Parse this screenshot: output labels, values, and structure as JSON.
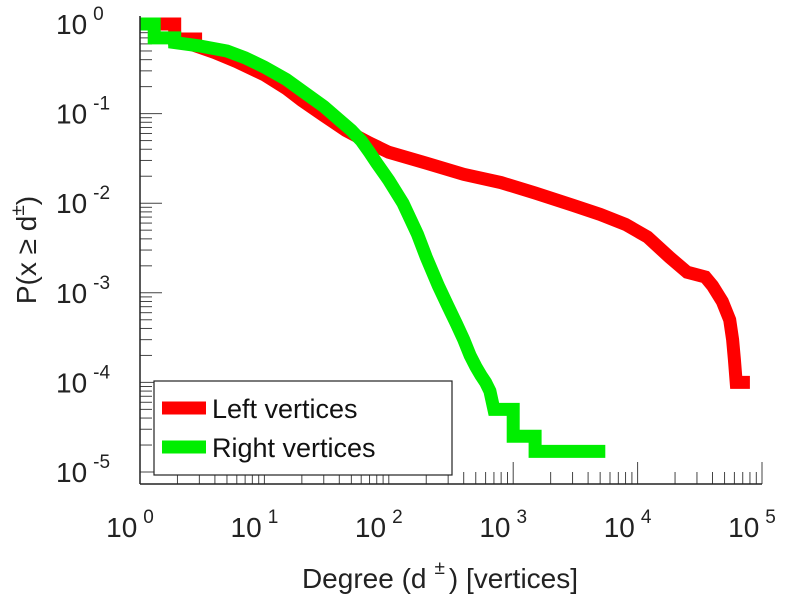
{
  "chart_data": {
    "type": "line",
    "xlabel": "Degree (d ±) [vertices]",
    "xlabel_parts": {
      "pre": "Degree (d",
      "sup": "±",
      "post": ") [vertices]"
    },
    "ylabel": "P(x ≥ d±)",
    "ylabel_parts": {
      "pre": "P(x ≥ d",
      "sup": "±",
      "post": ")"
    },
    "x_scale": "log",
    "y_scale": "log",
    "xlim": [
      1,
      100000
    ],
    "ylim": [
      1e-05,
      1
    ],
    "x_ticks": [
      {
        "base": "10",
        "exp": "0"
      },
      {
        "base": "10",
        "exp": "1"
      },
      {
        "base": "10",
        "exp": "2"
      },
      {
        "base": "10",
        "exp": "3"
      },
      {
        "base": "10",
        "exp": "4"
      },
      {
        "base": "10",
        "exp": "5"
      }
    ],
    "y_ticks": [
      {
        "base": "10",
        "exp": "0"
      },
      {
        "base": "10",
        "exp": "-1"
      },
      {
        "base": "10",
        "exp": "-2"
      },
      {
        "base": "10",
        "exp": "-3"
      },
      {
        "base": "10",
        "exp": "-4"
      },
      {
        "base": "10",
        "exp": "-5"
      }
    ],
    "grid": false,
    "legend_position": "bottom-left",
    "series": [
      {
        "name": "Left vertices",
        "color": "#ff0000",
        "points": [
          [
            1,
            1
          ],
          [
            1.9,
            1
          ],
          [
            1.9,
            0.68
          ],
          [
            2.8,
            0.68
          ],
          [
            2.8,
            0.57
          ],
          [
            4,
            0.48
          ],
          [
            6,
            0.38
          ],
          [
            10,
            0.27
          ],
          [
            15,
            0.19
          ],
          [
            20,
            0.14
          ],
          [
            30,
            0.095
          ],
          [
            45,
            0.065
          ],
          [
            70,
            0.047
          ],
          [
            100,
            0.037
          ],
          [
            200,
            0.028
          ],
          [
            400,
            0.021
          ],
          [
            800,
            0.017
          ],
          [
            1500,
            0.013
          ],
          [
            3000,
            0.0095
          ],
          [
            5000,
            0.0075
          ],
          [
            8000,
            0.0058
          ],
          [
            12000,
            0.0042
          ],
          [
            18000,
            0.0025
          ],
          [
            25000,
            0.0017
          ],
          [
            35000,
            0.0015
          ],
          [
            40000,
            0.0012
          ],
          [
            48000,
            0.0008
          ],
          [
            55000,
            0.0005
          ],
          [
            58000,
            0.0003
          ],
          [
            60000,
            0.00018
          ],
          [
            62000,
            0.0001
          ],
          [
            80000,
            0.0001
          ]
        ]
      },
      {
        "name": "Right vertices",
        "color": "#00ee00",
        "points": [
          [
            1,
            1
          ],
          [
            1.3,
            1
          ],
          [
            1.3,
            0.7
          ],
          [
            1.9,
            0.7
          ],
          [
            1.9,
            0.62
          ],
          [
            3,
            0.57
          ],
          [
            5,
            0.5
          ],
          [
            7,
            0.42
          ],
          [
            10,
            0.33
          ],
          [
            15,
            0.24
          ],
          [
            20,
            0.18
          ],
          [
            30,
            0.12
          ],
          [
            40,
            0.085
          ],
          [
            50,
            0.065
          ],
          [
            60,
            0.05
          ],
          [
            70,
            0.037
          ],
          [
            80,
            0.028
          ],
          [
            100,
            0.018
          ],
          [
            130,
            0.01
          ],
          [
            170,
            0.0045
          ],
          [
            200,
            0.0025
          ],
          [
            250,
            0.0012
          ],
          [
            300,
            0.0007
          ],
          [
            350,
            0.00045
          ],
          [
            400,
            0.0003
          ],
          [
            450,
            0.0002
          ],
          [
            500,
            0.00015
          ],
          [
            550,
            0.00012
          ],
          [
            600,
            0.0001
          ],
          [
            650,
            8e-05
          ],
          [
            700,
            5e-05
          ],
          [
            1000,
            5e-05
          ],
          [
            1000,
            2.5e-05
          ],
          [
            1500,
            2.5e-05
          ],
          [
            1500,
            1.7e-05
          ],
          [
            5500,
            1.7e-05
          ]
        ]
      }
    ]
  }
}
